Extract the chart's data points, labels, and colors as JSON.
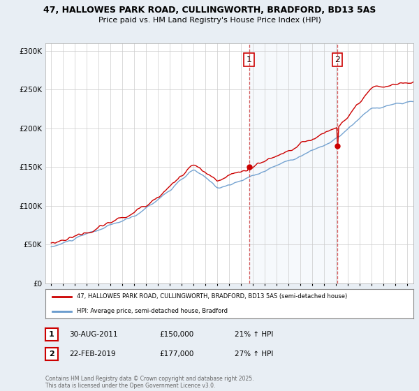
{
  "title_line1": "47, HALLOWES PARK ROAD, CULLINGWORTH, BRADFORD, BD13 5AS",
  "title_line2": "Price paid vs. HM Land Registry's House Price Index (HPI)",
  "property_label": "47, HALLOWES PARK ROAD, CULLINGWORTH, BRADFORD, BD13 5AS (semi-detached house)",
  "hpi_label": "HPI: Average price, semi-detached house, Bradford",
  "property_color": "#cc0000",
  "hpi_color": "#6699cc",
  "background_color": "#e8eef4",
  "plot_bg_color": "#ffffff",
  "shade_color": "#dde8f5",
  "ylim": [
    0,
    310000
  ],
  "yticks": [
    0,
    50000,
    100000,
    150000,
    200000,
    250000,
    300000
  ],
  "xlim_start": 1994.5,
  "xlim_end": 2025.5,
  "xticks": [
    1995,
    1996,
    1997,
    1998,
    1999,
    2000,
    2001,
    2002,
    2003,
    2004,
    2005,
    2006,
    2007,
    2008,
    2009,
    2010,
    2011,
    2012,
    2013,
    2014,
    2015,
    2016,
    2017,
    2018,
    2019,
    2020,
    2021,
    2022,
    2023,
    2024,
    2025
  ],
  "ann1_x": 2011.667,
  "ann2_x": 2019.125,
  "ann1_y": 150000,
  "ann2_y": 177000,
  "footer": "Contains HM Land Registry data © Crown copyright and database right 2025.\nThis data is licensed under the Open Government Licence v3.0.",
  "ann1_label": "1",
  "ann2_label": "2",
  "ann1_date": "30-AUG-2011",
  "ann1_price": "£150,000",
  "ann1_hpi": "21% ↑ HPI",
  "ann2_date": "22-FEB-2019",
  "ann2_price": "£177,000",
  "ann2_hpi": "27% ↑ HPI"
}
